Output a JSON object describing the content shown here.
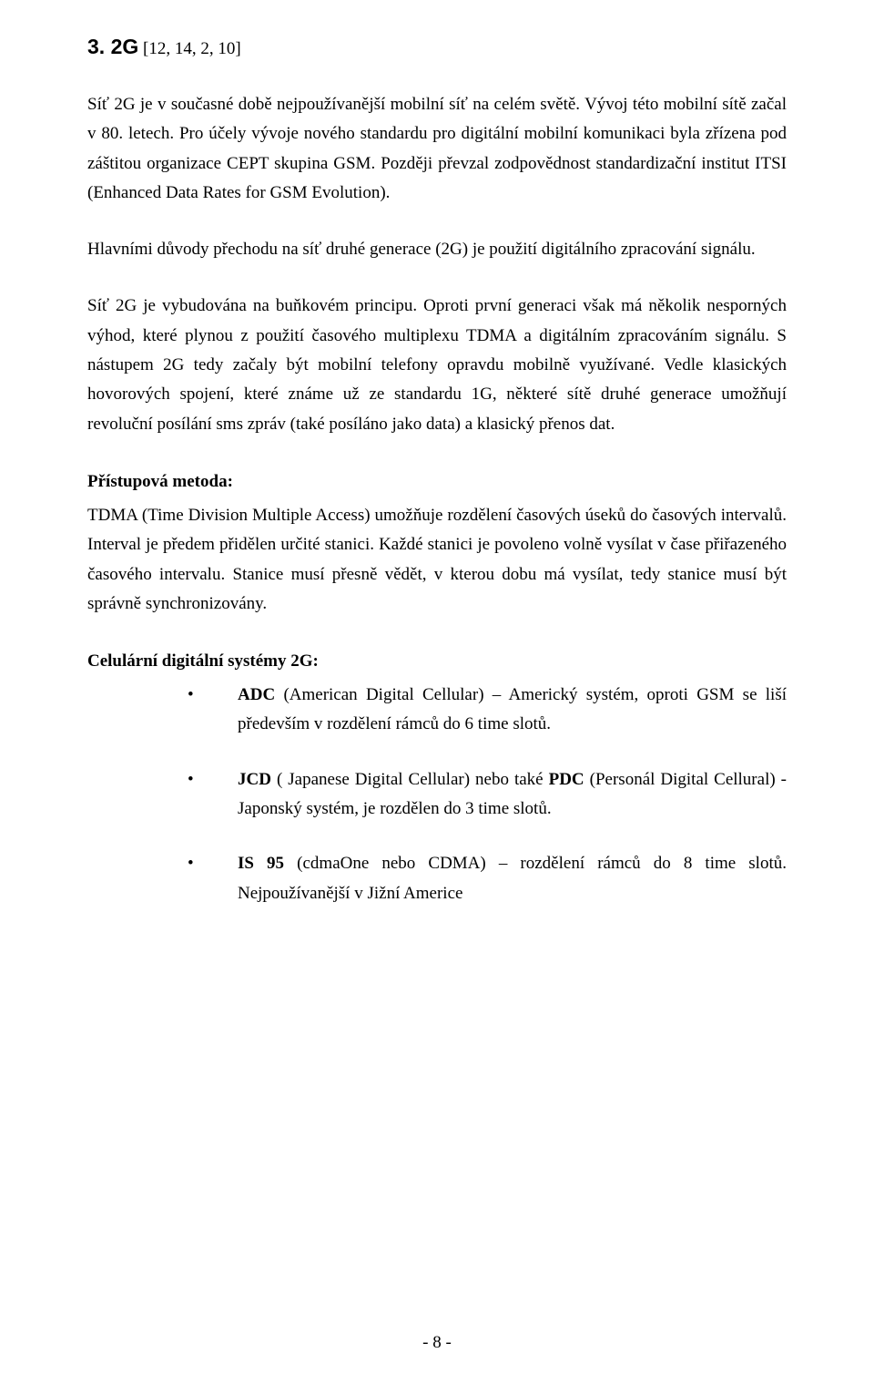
{
  "heading": {
    "title": "3. 2G",
    "refs": " [12, 14, 2, 10]"
  },
  "paragraphs": {
    "p1": "Síť 2G je v současné době nejpoužívanější mobilní síť na celém světě. Vývoj této mobilní sítě začal v 80. letech. Pro účely vývoje nového standardu pro digitální mobilní komunikaci byla zřízena pod záštitou organizace CEPT skupina GSM. Později převzal zodpovědnost standardizační institut ITSI (Enhanced Data Rates for GSM Evolution).",
    "p2": "Hlavními důvody přechodu na síť druhé generace (2G) je použití digitálního zpracování signálu.",
    "p3": "Síť 2G je vybudována na buňkovém principu. Oproti první generaci však má několik nesporných výhod, které plynou z použití časového multiplexu TDMA a digitálním zpracováním signálu. S nástupem 2G tedy začaly být mobilní telefony opravdu mobilně využívané. Vedle klasických hovorových spojení, které známe už ze standardu 1G, některé sítě druhé generace umožňují revoluční posílání sms zpráv (také posíláno jako data) a klasický přenos dat."
  },
  "access_method": {
    "title": "Přístupová metoda:",
    "body": " TDMA (Time Division Multiple Access) umožňuje rozdělení časových úseků do časových intervalů. Interval je předem přidělen určité stanici. Každé stanici je povoleno volně vysílat v čase přiřazeného časového intervalu. Stanice musí přesně vědět, v kterou dobu má vysílat, tedy stanice musí být správně synchronizovány."
  },
  "systems": {
    "title": "Celulární digitální systémy 2G:",
    "items": [
      {
        "lead_bold": "ADC",
        "lead_rest": " (American Digital Cellular) – Americký systém, oproti GSM se liší především v rozdělení rámců do 6 time slotů."
      },
      {
        "lead_bold": "JCD",
        "mid": " ( Japanese Digital Cellular) nebo také ",
        "mid_bold": "PDC",
        "rest": " (Personál Digital Cellural) - Japonský systém, je rozdělen do 3 time slotů."
      },
      {
        "lead_bold": "IS 95",
        "lead_rest": " (cdmaOne nebo CDMA) – rozdělení rámců do 8 time slotů. Nejpoužívanější v Jižní Americe"
      }
    ]
  },
  "page_number": "- 8 -"
}
